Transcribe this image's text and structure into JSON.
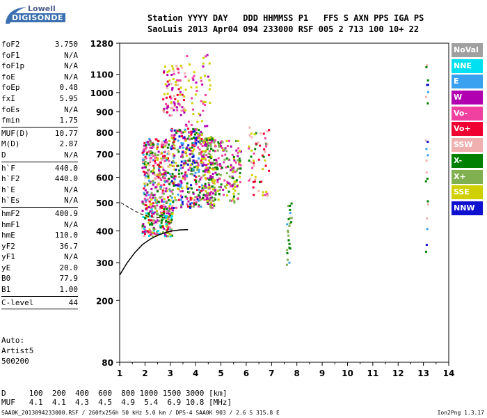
{
  "logo": {
    "line1": "Lowell",
    "line2": "DIGISONDE"
  },
  "header": {
    "row1": "Station YYYY DAY   DDD HHMMSS P1   FFS S AXN PPS IGA PS",
    "row2": "SaoLuis 2013 Apr04 094 233000 RSF 005 2 713 100 10+ 22"
  },
  "params_group1": [
    {
      "k": "foF2",
      "v": "3.750"
    },
    {
      "k": "foF1",
      "v": "N/A"
    },
    {
      "k": "foF1p",
      "v": "N/A"
    },
    {
      "k": "foE",
      "v": "N/A"
    },
    {
      "k": "foEp",
      "v": "0.48"
    },
    {
      "k": "fxI",
      "v": "5.95"
    },
    {
      "k": "foEs",
      "v": "N/A"
    },
    {
      "k": "fmin",
      "v": "1.75"
    }
  ],
  "params_group2": [
    {
      "k": "MUF(D)",
      "v": "10.77"
    },
    {
      "k": "M(D)",
      "v": "2.87"
    },
    {
      "k": "D",
      "v": "N/A"
    }
  ],
  "params_group3": [
    {
      "k": "h`F",
      "v": "440.0"
    },
    {
      "k": "h`F2",
      "v": "440.0"
    },
    {
      "k": "h`E",
      "v": "N/A"
    },
    {
      "k": "h`Es",
      "v": "N/A"
    }
  ],
  "params_group4": [
    {
      "k": "hmF2",
      "v": "400.9"
    },
    {
      "k": "hmF1",
      "v": "N/A"
    },
    {
      "k": "hmE",
      "v": "110.0"
    },
    {
      "k": "yF2",
      "v": "36.7"
    },
    {
      "k": "yF1",
      "v": "N/A"
    },
    {
      "k": "yE",
      "v": "20.0"
    },
    {
      "k": "B0",
      "v": "77.9"
    },
    {
      "k": "B1",
      "v": "1.00"
    }
  ],
  "clevel": {
    "k": "C-level",
    "v": "44"
  },
  "auto": [
    "Auto:",
    "Artist5",
    "500200"
  ],
  "legend": [
    {
      "label": "NoVal",
      "color": "#a0a0a0"
    },
    {
      "label": "NNE",
      "color": "#00e0f0"
    },
    {
      "label": "E",
      "color": "#3aa0f0"
    },
    {
      "label": "W",
      "color": "#b000b0"
    },
    {
      "label": "Vo-",
      "color": "#f040a0"
    },
    {
      "label": "Vo+",
      "color": "#f00030"
    },
    {
      "label": "SSW",
      "color": "#f0b0b0"
    },
    {
      "label": "X-",
      "color": "#008000"
    },
    {
      "label": "X+",
      "color": "#80b050"
    },
    {
      "label": "SSE",
      "color": "#d0d000"
    },
    {
      "label": "NNW",
      "color": "#1010d0"
    }
  ],
  "mufline": {
    "d_row": "D     100  200  400  600  800 1000 1500 3000 [km]",
    "muf_row": "MUF   4.1  4.1  4.3  4.5  4.9  5.4  6.9 10.8 [MHz]"
  },
  "footer": "SAA0K_2013094233000.RSF / 260fx256h 50 kHz 5.0 km / DPS-4 SAA0K 903 / 2.6 S 315.8 E",
  "version": "Ion2Png 1.3.17",
  "chart_data": {
    "type": "scatter",
    "title": "",
    "xlabel": "",
    "ylabel": "",
    "xlim": [
      1,
      14
    ],
    "ylim": [
      80,
      1280
    ],
    "x_ticks": [
      1,
      2,
      3,
      4,
      5,
      6,
      7,
      8,
      9,
      10,
      11,
      12,
      13,
      14
    ],
    "y_ticks": [
      80,
      200,
      300,
      400,
      500,
      600,
      700,
      800,
      900,
      1000,
      1100,
      1280
    ],
    "y_scale": "sqrt",
    "clusters": [
      {
        "x": [
          1.9,
          3.1
        ],
        "y": [
          380,
          500
        ],
        "n": 230,
        "colors": [
          "#f040a0",
          "#f00030",
          "#b000b0",
          "#008000",
          "#80b050",
          "#d0d000",
          "#f0b0b0",
          "#00e0f0"
        ]
      },
      {
        "x": [
          1.9,
          3.0
        ],
        "y": [
          500,
          770
        ],
        "n": 300,
        "colors": [
          "#f040a0",
          "#b000b0",
          "#f00030",
          "#008000",
          "#d0d000",
          "#80b050",
          "#3aa0f0",
          "#f0b0b0"
        ]
      },
      {
        "x": [
          3.0,
          4.3
        ],
        "y": [
          480,
          820
        ],
        "n": 360,
        "colors": [
          "#f040a0",
          "#b000b0",
          "#d0d000",
          "#80b050",
          "#008000",
          "#f00030",
          "#3aa0f0",
          "#1010d0"
        ]
      },
      {
        "x": [
          4.3,
          4.8
        ],
        "y": [
          480,
          780
        ],
        "n": 180,
        "colors": [
          "#d0d000",
          "#80b050",
          "#008000",
          "#f040a0",
          "#b000b0"
        ]
      },
      {
        "x": [
          4.8,
          5.8
        ],
        "y": [
          500,
          760
        ],
        "n": 140,
        "colors": [
          "#d0d000",
          "#80b050",
          "#008000",
          "#b000b0",
          "#f040a0"
        ]
      },
      {
        "x": [
          2.7,
          3.6
        ],
        "y": [
          880,
          1150
        ],
        "n": 90,
        "colors": [
          "#d0d000",
          "#f040a0",
          "#b000b0",
          "#f00030",
          "#f0b0b0"
        ]
      },
      {
        "x": [
          3.6,
          4.6
        ],
        "y": [
          820,
          1230
        ],
        "n": 50,
        "colors": [
          "#f040a0",
          "#b000b0",
          "#d0d000"
        ]
      },
      {
        "x": [
          6.1,
          6.9
        ],
        "y": [
          520,
          830
        ],
        "n": 60,
        "colors": [
          "#f0b0b0",
          "#f040a0",
          "#d0d000",
          "#008000",
          "#f00030"
        ]
      },
      {
        "x": [
          7.6,
          7.8
        ],
        "y": [
          290,
          500
        ],
        "n": 25,
        "colors": [
          "#008000",
          "#80b050",
          "#3aa0f0"
        ]
      },
      {
        "x": [
          13.1,
          13.2
        ],
        "y": [
          330,
          1200
        ],
        "n": 22,
        "colors": [
          "#1010d0",
          "#008000",
          "#3aa0f0",
          "#f0b0b0"
        ]
      }
    ],
    "profile_curve": {
      "x": [
        1.0,
        1.3,
        1.6,
        1.9,
        2.2,
        2.5,
        2.8,
        3.1,
        3.4,
        3.7
      ],
      "y": [
        265,
        300,
        330,
        355,
        372,
        385,
        394,
        400,
        403,
        404
      ]
    },
    "dashed_trace": {
      "x": [
        1.05,
        1.4,
        1.8,
        2.2,
        2.6,
        3.0
      ],
      "y": [
        500,
        480,
        460,
        448,
        445,
        448
      ]
    }
  }
}
